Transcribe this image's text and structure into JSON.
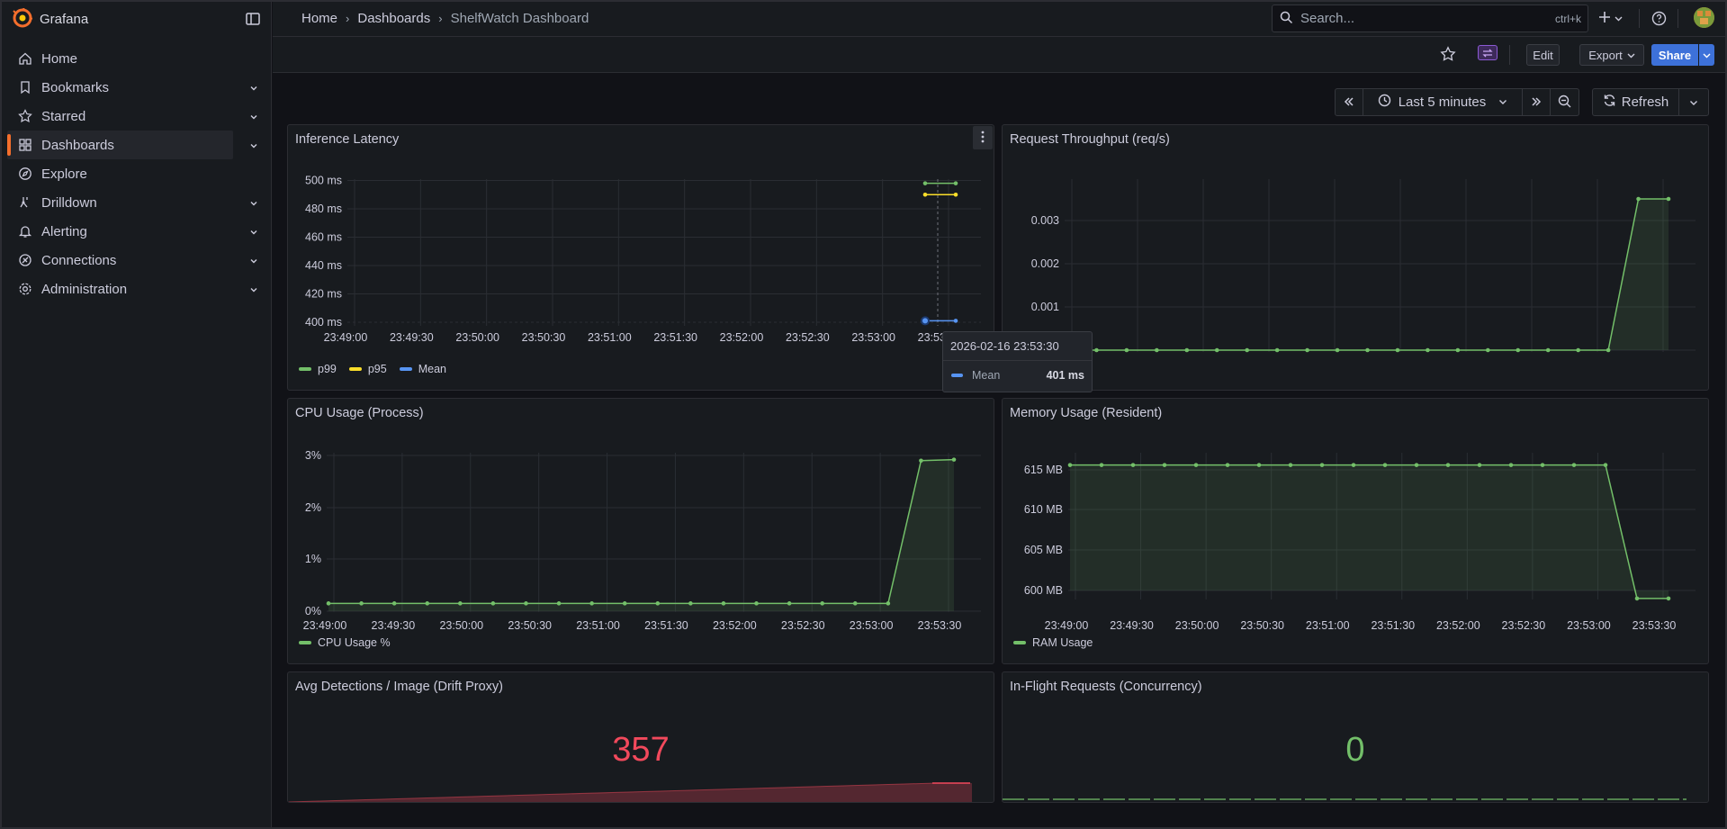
{
  "app": {
    "name": "Grafana"
  },
  "sidebar": {
    "items": [
      {
        "label": "Home",
        "icon": "home-icon",
        "expandable": false
      },
      {
        "label": "Bookmarks",
        "icon": "bookmark-icon",
        "expandable": true
      },
      {
        "label": "Starred",
        "icon": "star-icon",
        "expandable": true
      },
      {
        "label": "Dashboards",
        "icon": "apps-icon",
        "expandable": true,
        "active": true
      },
      {
        "label": "Explore",
        "icon": "compass-icon",
        "expandable": false
      },
      {
        "label": "Drilldown",
        "icon": "drilldown-icon",
        "expandable": true
      },
      {
        "label": "Alerting",
        "icon": "bell-icon",
        "expandable": true
      },
      {
        "label": "Connections",
        "icon": "plug-icon",
        "expandable": true
      },
      {
        "label": "Administration",
        "icon": "cog-icon",
        "expandable": true
      }
    ]
  },
  "breadcrumb": [
    "Home",
    "Dashboards",
    "ShelfWatch Dashboard"
  ],
  "search": {
    "placeholder": "Search...",
    "shortcut": "ctrl+k"
  },
  "toolbar": {
    "edit_label": "Edit",
    "export_label": "Export",
    "share_label": "Share"
  },
  "time_controls": {
    "range_label": "Last 5 minutes",
    "refresh_label": "Refresh"
  },
  "colors": {
    "accent": "#f46e2c",
    "green": "#73bf69",
    "yellow": "#fade2a",
    "blue": "#5794f2",
    "red": "#f2495c",
    "primary": "#3d71d9"
  },
  "x_ticks": [
    "23:49:00",
    "23:49:30",
    "23:50:00",
    "23:50:30",
    "23:51:00",
    "23:51:30",
    "23:52:00",
    "23:52:30",
    "23:53:00",
    "23:53:30"
  ],
  "panels": {
    "latency": {
      "title": "Inference Latency",
      "legend": [
        "p99",
        "p95",
        "Mean"
      ]
    },
    "throughput": {
      "title": "Request Throughput (req/s)"
    },
    "cpu": {
      "title": "CPU Usage (Process)",
      "legend": [
        "CPU Usage %"
      ]
    },
    "memory": {
      "title": "Memory Usage (Resident)",
      "legend": [
        "RAM Usage"
      ]
    },
    "detections": {
      "title": "Avg Detections / Image (Drift Proxy)",
      "value": "357"
    },
    "inflight": {
      "title": "In-Flight Requests (Concurrency)",
      "value": "0"
    }
  },
  "tooltip": {
    "time": "2026-02-16 23:53:30",
    "series": "Mean",
    "value": "401 ms"
  },
  "chart_data": [
    {
      "type": "line",
      "title": "Inference Latency",
      "x": [
        "23:53:30",
        "23:53:40"
      ],
      "yticks": [
        "400 ms",
        "420 ms",
        "440 ms",
        "460 ms",
        "480 ms",
        "500 ms"
      ],
      "ylim": [
        400,
        500
      ],
      "series": [
        {
          "name": "p99",
          "color": "#73bf69",
          "values": [
            498,
            498
          ]
        },
        {
          "name": "p95",
          "color": "#fade2a",
          "values": [
            490,
            490
          ]
        },
        {
          "name": "Mean",
          "color": "#5794f2",
          "values": [
            401,
            401
          ]
        }
      ]
    },
    {
      "type": "area",
      "title": "Request Throughput (req/s)",
      "yticks": [
        "0",
        "0.001",
        "0.002",
        "0.003"
      ],
      "ylim": [
        0,
        0.003
      ],
      "series": [
        {
          "name": "",
          "color": "#73bf69",
          "values": [
            0,
            0,
            0,
            0,
            0,
            0,
            0,
            0,
            0,
            0,
            0,
            0,
            0,
            0,
            0,
            0,
            0,
            0,
            0,
            0.0035,
            0.0035
          ]
        }
      ]
    },
    {
      "type": "area",
      "title": "CPU Usage (Process)",
      "yticks": [
        "0%",
        "1%",
        "2%",
        "3%"
      ],
      "ylim": [
        0,
        3
      ],
      "series": [
        {
          "name": "CPU Usage %",
          "color": "#73bf69",
          "values": [
            0.15,
            0.15,
            0.15,
            0.15,
            0.15,
            0.15,
            0.15,
            0.15,
            0.15,
            0.15,
            0.15,
            0.15,
            0.15,
            0.15,
            0.15,
            0.15,
            0.15,
            0.15,
            2.9,
            2.92
          ]
        }
      ]
    },
    {
      "type": "area",
      "title": "Memory Usage (Resident)",
      "yticks": [
        "600 MB",
        "605 MB",
        "610 MB",
        "615 MB"
      ],
      "ylim": [
        598,
        617
      ],
      "series": [
        {
          "name": "RAM Usage",
          "color": "#73bf69",
          "values": [
            615.6,
            615.6,
            615.6,
            615.6,
            615.6,
            615.6,
            615.6,
            615.6,
            615.6,
            615.6,
            615.6,
            615.6,
            615.6,
            615.6,
            615.6,
            615.6,
            615.6,
            615.6,
            599,
            599
          ]
        }
      ]
    }
  ]
}
